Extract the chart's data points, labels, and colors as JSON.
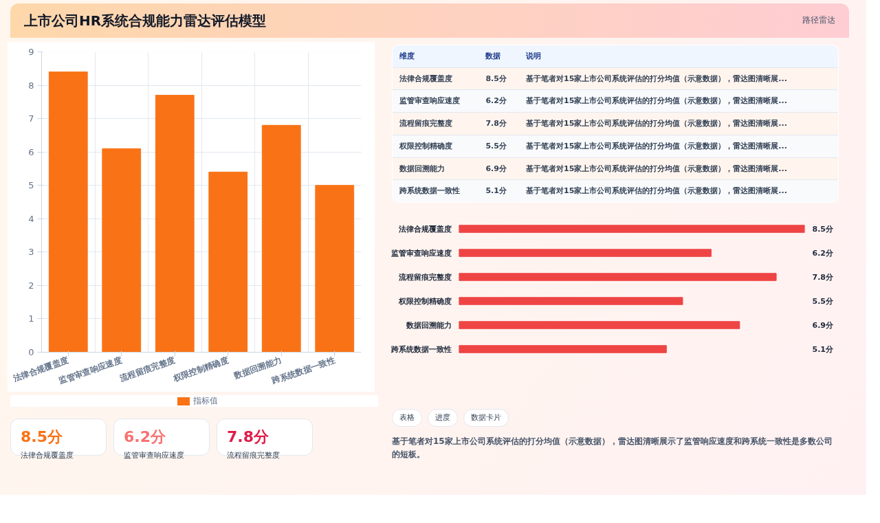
{
  "chart_data": [
    {
      "type": "bar",
      "title": "上市公司HR系统合规能力雷达评估模型",
      "categories": [
        "法律合规覆盖度",
        "监管审查响应速度",
        "流程留痕完整度",
        "权限控制精确度",
        "数据回溯能力",
        "跨系统数据一致性"
      ],
      "series": [
        {
          "name": "指标值",
          "color": "#f97316",
          "values": [
            8.4,
            6.1,
            7.7,
            5.4,
            6.8,
            5.0
          ]
        }
      ],
      "ylim": [
        0,
        9
      ],
      "yticks": [
        0,
        1,
        2,
        3,
        4,
        5,
        6,
        7,
        8,
        9
      ],
      "grid": true,
      "legend": "bottom"
    },
    {
      "type": "other",
      "categories": [
        "法律合规覆盖度",
        "监管审查响应速度",
        "流程留痕完整度",
        "权限控制精确度",
        "数据回溯能力",
        "跨系统数据一致性"
      ],
      "value_labels": [
        "8.5分",
        "6.2分",
        "7.8分",
        "5.5分",
        "6.9分",
        "5.1分"
      ],
      "annotations": [
        "维度",
        "数据",
        "说明",
        "基于笔者对15家上市公司系统评估的打分均值（示意数据），雷达图清晰展...",
        "基于笔者对15家上市公司系统评估的打分均值（示意数据），雷达图清晰展...",
        "基于笔者对15家上市公司系统评估的打分均值（示意数据），雷达图清晰展...",
        "基于笔者对15家上市公司系统评估的打分均值（示意数据），雷达图清晰展...",
        "基于笔者对15家上市公司系统评估的打分均值（示意数据），雷达图清晰展...",
        "基于笔者对15家上市公司系统评估的打分均值（示意数据），雷达图清晰展..."
      ]
    },
    {
      "type": "bar",
      "orientation": "horizontal",
      "categories": [
        "法律合规覆盖度",
        "监管审查响应速度",
        "流程留痕完整度",
        "权限控制精确度",
        "数据回溯能力",
        "跨系统数据一致性"
      ],
      "values": [
        8.5,
        6.2,
        7.8,
        5.5,
        6.9,
        5.1
      ],
      "value_labels": [
        "8.5分",
        "6.2分",
        "7.8分",
        "5.5分",
        "6.9分",
        "5.1分"
      ],
      "color": "#ef4444"
    },
    {
      "type": "other",
      "categories": [
        "法律合规覆盖度",
        "监管审查响应速度",
        "流程留痕完整度"
      ],
      "value_labels": [
        "8.5分",
        "6.2分",
        "7.8分"
      ],
      "annotations": [
        "路径雷达",
        "表格",
        "进度",
        "数据卡片",
        "基于笔者对15家上市公司系统评估的打分均值（示意数据），雷达图清晰展示了监管响应速度和跨系统一致性是多数公司的短板。"
      ]
    }
  ]
}
